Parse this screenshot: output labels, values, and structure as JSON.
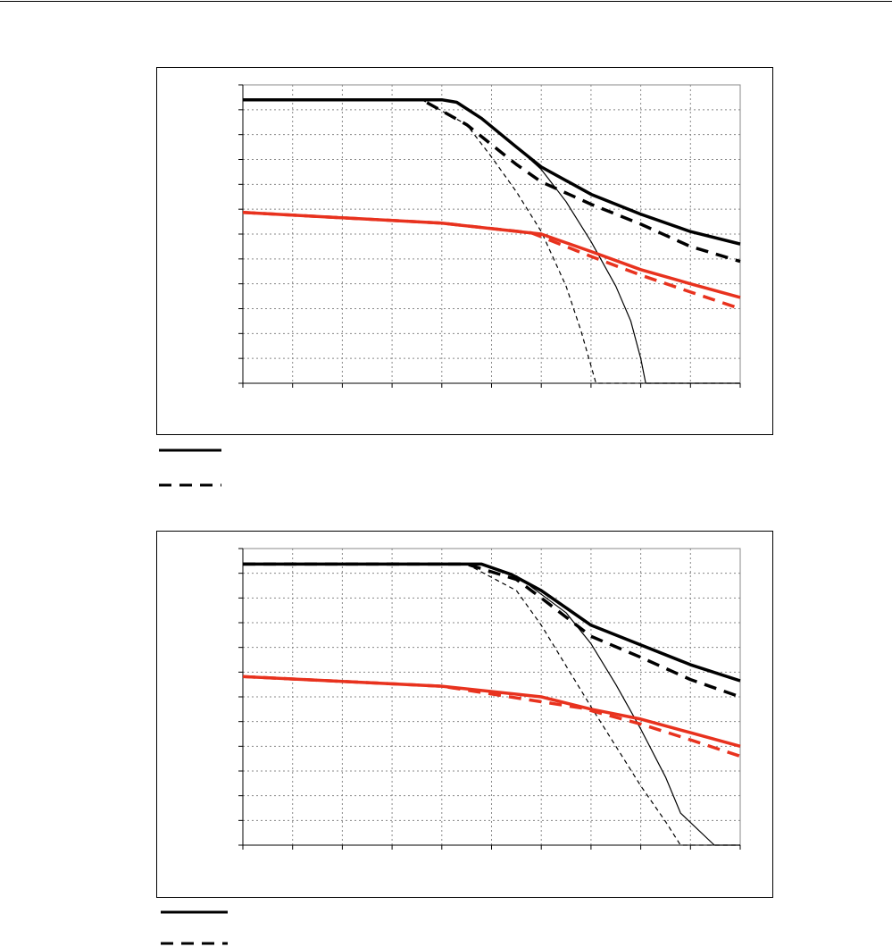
{
  "chart_data": [
    {
      "type": "line",
      "xlim": [
        0,
        10
      ],
      "ylim": [
        0,
        12
      ],
      "xticks": [
        0,
        1,
        2,
        3,
        4,
        5,
        6,
        7,
        8,
        9,
        10
      ],
      "yticks": [
        0,
        1,
        2,
        3,
        4,
        5,
        6,
        7,
        8,
        9,
        10,
        11,
        12
      ],
      "grid": true,
      "series": [
        {
          "color": "#000000",
          "line_style": "solid",
          "line_width": 3.5,
          "x": [
            0,
            4,
            4.3,
            4.8,
            5.5,
            6,
            7,
            8,
            9,
            10
          ],
          "values": [
            11.4,
            11.4,
            11.3,
            10.65,
            9.5,
            8.7,
            7.6,
            6.8,
            6.1,
            5.6
          ]
        },
        {
          "color": "#000000",
          "line_style": "dashed",
          "line_width": 3.5,
          "x": [
            0,
            3.6,
            4.5,
            5.5,
            6,
            7,
            8,
            9,
            10
          ],
          "values": [
            11.4,
            11.4,
            10.4,
            8.8,
            8.1,
            7.2,
            6.4,
            5.5,
            4.9
          ]
        },
        {
          "color": "#000000",
          "line_style": "solid",
          "line_width": 1.2,
          "x": [
            4.8,
            5.5,
            6,
            6.5,
            7,
            7.5,
            7.8,
            8,
            8.1,
            10
          ],
          "values": [
            10.65,
            9.5,
            8.6,
            7.3,
            5.7,
            3.9,
            2.5,
            1.0,
            0,
            0
          ]
        },
        {
          "color": "#000000",
          "line_style": "dashed",
          "line_width": 1.2,
          "x": [
            3.6,
            4.5,
            5,
            5.5,
            6,
            6.5,
            6.8,
            7,
            7.1,
            10
          ],
          "values": [
            11.4,
            10.4,
            9.1,
            7.7,
            6.1,
            3.9,
            2.1,
            0.7,
            0,
            0
          ]
        },
        {
          "color": "#e8321e",
          "line_style": "solid",
          "line_width": 3.5,
          "x": [
            0,
            4,
            6,
            7,
            8,
            9,
            10
          ],
          "values": [
            6.87,
            6.44,
            6.0,
            5.3,
            4.57,
            4.0,
            3.45
          ]
        },
        {
          "color": "#e8321e",
          "line_style": "dashed",
          "line_width": 3.5,
          "x": [
            0,
            4,
            5.8,
            7,
            8,
            9,
            10
          ],
          "values": [
            6.87,
            6.44,
            6.05,
            5.1,
            4.35,
            3.67,
            3.0
          ]
        }
      ]
    },
    {
      "type": "line",
      "xlim": [
        0,
        10
      ],
      "ylim": [
        0,
        12
      ],
      "xticks": [
        0,
        1,
        2,
        3,
        4,
        5,
        6,
        7,
        8,
        9,
        10
      ],
      "yticks": [
        0,
        1,
        2,
        3,
        4,
        5,
        6,
        7,
        8,
        9,
        10,
        11,
        12
      ],
      "grid": true,
      "series": [
        {
          "color": "#000000",
          "line_style": "solid",
          "line_width": 3.5,
          "x": [
            0,
            4.8,
            5.4,
            6,
            7,
            8,
            9,
            10
          ],
          "values": [
            11.37,
            11.37,
            10.95,
            10.3,
            8.9,
            8.1,
            7.3,
            6.65
          ]
        },
        {
          "color": "#000000",
          "line_style": "dashed",
          "line_width": 3.5,
          "x": [
            0,
            4.5,
            5.5,
            6,
            7,
            8,
            9,
            10
          ],
          "values": [
            11.37,
            11.37,
            10.75,
            10.0,
            8.45,
            7.6,
            6.7,
            6.0
          ]
        },
        {
          "color": "#000000",
          "line_style": "solid",
          "line_width": 1.2,
          "x": [
            5.5,
            6.5,
            7,
            7.5,
            8,
            8.5,
            8.8,
            9.48,
            10
          ],
          "values": [
            10.9,
            9.4,
            8.15,
            6.5,
            4.7,
            2.75,
            1.3,
            0,
            0
          ]
        },
        {
          "color": "#000000",
          "line_style": "dashed",
          "line_width": 1.2,
          "x": [
            4.5,
            5.5,
            6,
            6.5,
            7,
            7.5,
            8,
            8.5,
            8.8,
            10
          ],
          "values": [
            11.37,
            10.3,
            8.9,
            7.25,
            5.6,
            4.0,
            2.4,
            0.95,
            0,
            0
          ]
        },
        {
          "color": "#e8321e",
          "line_style": "solid",
          "line_width": 3.5,
          "x": [
            0,
            4,
            6,
            7,
            8,
            9,
            10
          ],
          "values": [
            6.82,
            6.43,
            6.0,
            5.5,
            5.1,
            4.55,
            4.0
          ]
        },
        {
          "color": "#e8321e",
          "line_style": "dashed",
          "line_width": 3.5,
          "x": [
            0,
            4,
            6.8,
            8,
            9,
            10
          ],
          "values": [
            6.82,
            6.43,
            5.55,
            4.9,
            4.26,
            3.6
          ]
        }
      ]
    }
  ]
}
